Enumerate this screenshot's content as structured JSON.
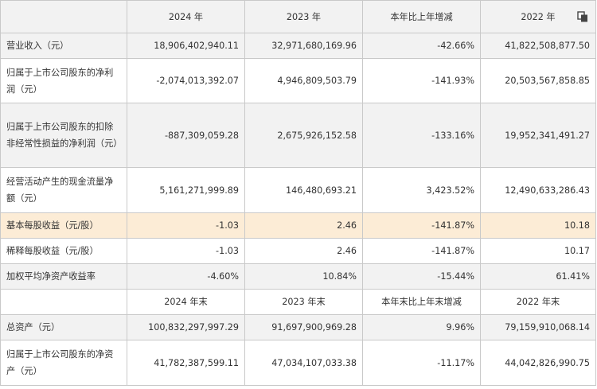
{
  "table": {
    "header1": [
      "",
      "2024 年",
      "2023 年",
      "本年比上年增减",
      "2022 年"
    ],
    "header2": [
      "",
      "2024 年末",
      "2023 年末",
      "本年末比上年末增减",
      "2022 年末"
    ],
    "rows1": [
      {
        "label": "营业收入（元）",
        "values": [
          "18,906,402,940.11",
          "32,971,680,169.96",
          "-42.66%",
          "41,822,508,877.50"
        ]
      },
      {
        "label": "归属于上市公司股东的净利润（元）",
        "values": [
          "-2,074,013,392.07",
          "4,946,809,503.79",
          "-141.93%",
          "20,503,567,858.85"
        ]
      },
      {
        "label": "归属于上市公司股东的扣除非经常性损益的净利润（元）",
        "values": [
          "-887,309,059.28",
          "2,675,926,152.58",
          "-133.16%",
          "19,952,341,491.27"
        ]
      },
      {
        "label": "经营活动产生的现金流量净额（元）",
        "values": [
          "5,161,271,999.89",
          "146,480,693.21",
          "3,423.52%",
          "12,490,633,286.43"
        ]
      },
      {
        "label": "基本每股收益（元/股）",
        "values": [
          "-1.03",
          "2.46",
          "-141.87%",
          "10.18"
        ]
      },
      {
        "label": "稀释每股收益（元/股）",
        "values": [
          "-1.03",
          "2.46",
          "-141.87%",
          "10.17"
        ]
      },
      {
        "label": "加权平均净资产收益率",
        "values": [
          "-4.60%",
          "10.84%",
          "-15.44%",
          "61.41%"
        ]
      }
    ],
    "rows2": [
      {
        "label": "总资产（元）",
        "values": [
          "100,832,297,997.29",
          "91,697,900,969.28",
          "9.96%",
          "79,159,910,068.14"
        ]
      },
      {
        "label": "归属于上市公司股东的净资产（元）",
        "values": [
          "41,782,387,599.11",
          "47,034,107,033.38",
          "-11.17%",
          "44,042,826,990.75"
        ]
      }
    ]
  },
  "icons": {
    "copy": "copy-icon"
  }
}
